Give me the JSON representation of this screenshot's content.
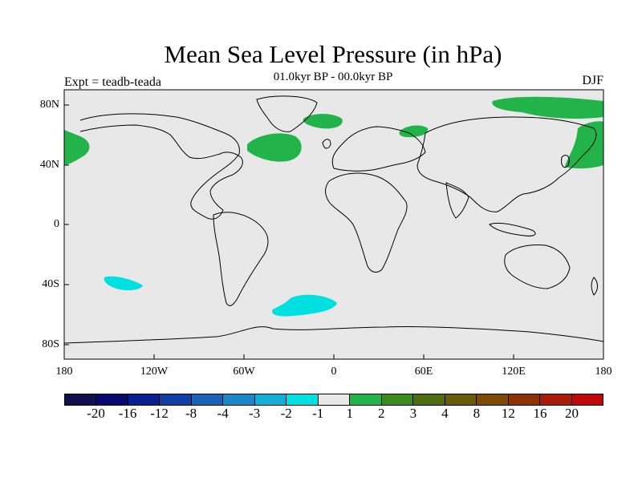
{
  "title": "Mean Sea Level Pressure (in hPa)",
  "subtitle": "01.0kyr BP - 00.0kyr BP",
  "experiment_label": "Expt = teadb-teada",
  "season_label": "DJF",
  "map": {
    "background_color": "#e8e8e8",
    "lat_ticks": [
      "80N",
      "40N",
      "0",
      "40S",
      "80S"
    ],
    "lon_ticks": [
      "180",
      "120W",
      "60W",
      "0",
      "60E",
      "120E",
      "180"
    ],
    "anomaly_regions": [
      {
        "name": "north-atlantic-positive",
        "color": "#22b34a"
      },
      {
        "name": "greenland-positive",
        "color": "#22b34a"
      },
      {
        "name": "barents-positive",
        "color": "#22b34a"
      },
      {
        "name": "arctic-siberia-positive",
        "color": "#22b34a"
      },
      {
        "name": "north-pacific-east-positive",
        "color": "#22b34a"
      },
      {
        "name": "north-pacific-west-positive",
        "color": "#22b34a"
      },
      {
        "name": "south-pacific-negative",
        "color": "#00e0e0"
      },
      {
        "name": "south-atlantic-negative",
        "color": "#00e0e0"
      }
    ]
  },
  "colorbar": {
    "colors": [
      "#10104a",
      "#080870",
      "#0a1f8f",
      "#1040a5",
      "#1a62b8",
      "#1b86c8",
      "#12aed8",
      "#00e0e0",
      "#e8e8e8",
      "#22b34a",
      "#3a8a1e",
      "#4e6c10",
      "#6a5a0c",
      "#7d4a05",
      "#8e3200",
      "#a81c0a",
      "#c0080a"
    ],
    "labels": [
      "-20",
      "-16",
      "-12",
      "-8",
      "-4",
      "-3",
      "-2",
      "-1",
      "1",
      "2",
      "3",
      "4",
      "8",
      "12",
      "16",
      "20"
    ]
  }
}
